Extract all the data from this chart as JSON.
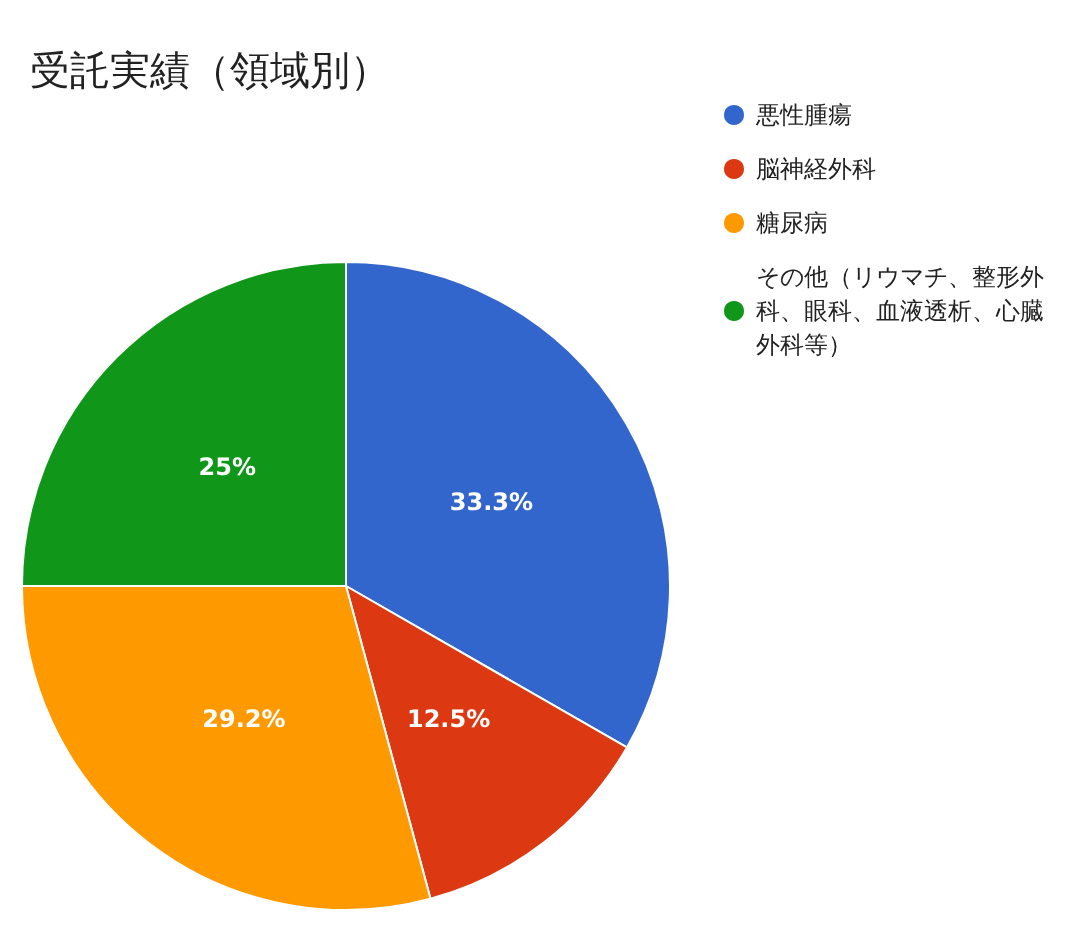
{
  "chart_data": {
    "type": "pie",
    "title": "受託実績（領域別）",
    "categories": [
      "悪性腫瘍",
      "脳神経外科",
      "糖尿病",
      "その他（リウマチ、整形外科、眼科、血液透析、心臓外科等）"
    ],
    "values": [
      33.3,
      12.5,
      29.2,
      25
    ],
    "value_labels": [
      "33.3%",
      "12.5%",
      "29.2%",
      "25%"
    ],
    "colors": [
      "#3366cc",
      "#dc3912",
      "#ff9900",
      "#109618"
    ],
    "legend": "top right"
  }
}
